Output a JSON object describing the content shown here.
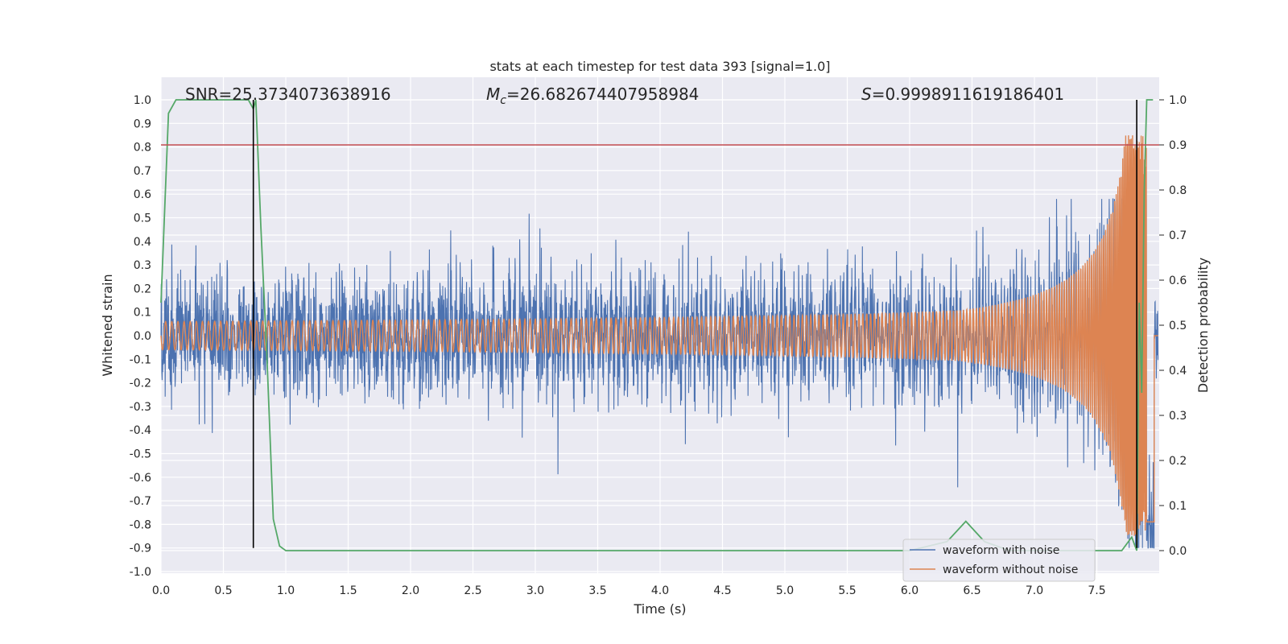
{
  "chart_data": {
    "type": "line",
    "title": "stats at each timestep for test data 393 [signal=1.0]",
    "xlabel": "Time (s)",
    "ylabel": "Whitened strain",
    "y2label": "Detection probability",
    "xlim": [
      0.0,
      8.0
    ],
    "ylim": [
      -1.0,
      1.0
    ],
    "y2lim": [
      -0.05,
      1.0
    ],
    "xticks": [
      "0.0",
      "0.5",
      "1.0",
      "1.5",
      "2.0",
      "2.5",
      "3.0",
      "3.5",
      "4.0",
      "4.5",
      "5.0",
      "5.5",
      "6.0",
      "6.5",
      "7.0",
      "7.5"
    ],
    "yticks": [
      "-1.0",
      "-0.9",
      "-0.8",
      "-0.7",
      "-0.6",
      "-0.5",
      "-0.4",
      "-0.3",
      "-0.2",
      "-0.1",
      "0.0",
      "0.1",
      "0.2",
      "0.3",
      "0.4",
      "0.5",
      "0.6",
      "0.7",
      "0.8",
      "0.9",
      "1.0"
    ],
    "y2ticks": [
      "0.0",
      "0.1",
      "0.2",
      "0.3",
      "0.4",
      "0.5",
      "0.6",
      "0.7",
      "0.8",
      "0.9",
      "1.0"
    ],
    "grid": true,
    "legend_position": "lower-right",
    "annotations": {
      "snr": "SNR=25.3734073638916",
      "mc_symbol": "M",
      "mc_sub": "c",
      "mc_value": "=26.682674407958984",
      "s_symbol": "S",
      "s_value": "=0.9998911619186401"
    },
    "series": [
      {
        "name": "waveform with noise",
        "color": "#4c72b0",
        "axis": "left",
        "noise_std": 0.12
      },
      {
        "name": "waveform without noise",
        "color": "#dd8452",
        "axis": "left",
        "chirp_peak_time": 7.9,
        "peak_amplitude": 0.85
      },
      {
        "name": "detection probability",
        "color": "#55a868",
        "axis": "right",
        "x": [
          0.0,
          0.06,
          0.12,
          0.2,
          0.3,
          0.45,
          0.6,
          0.7,
          0.74,
          0.76,
          0.8,
          0.85,
          0.9,
          0.95,
          1.0,
          1.5,
          2.0,
          3.0,
          4.0,
          5.0,
          6.0,
          6.3,
          6.45,
          6.6,
          6.8,
          7.0,
          7.5,
          7.7,
          7.78,
          7.82,
          7.84,
          7.86,
          7.88,
          7.9,
          7.92,
          7.95
        ],
        "y": [
          0.55,
          0.97,
          1.0,
          1.0,
          1.0,
          1.0,
          1.0,
          1.0,
          0.98,
          1.0,
          0.72,
          0.42,
          0.07,
          0.01,
          0.0,
          0.0,
          0.0,
          0.0,
          0.0,
          0.0,
          0.0,
          0.02,
          0.065,
          0.02,
          0.0,
          0.0,
          0.0,
          0.0,
          0.03,
          0.0,
          0.55,
          0.35,
          0.8,
          1.0,
          1.0,
          1.0
        ]
      }
    ],
    "threshold": {
      "axis": "right",
      "value": 0.9,
      "color": "#c44e52"
    },
    "vlines": [
      {
        "x": 0.74,
        "y_from": -0.9,
        "y_to": 1.0,
        "color": "#000000"
      },
      {
        "x": 7.82,
        "y_from": -0.9,
        "y_to": 1.0,
        "color": "#000000"
      }
    ]
  }
}
